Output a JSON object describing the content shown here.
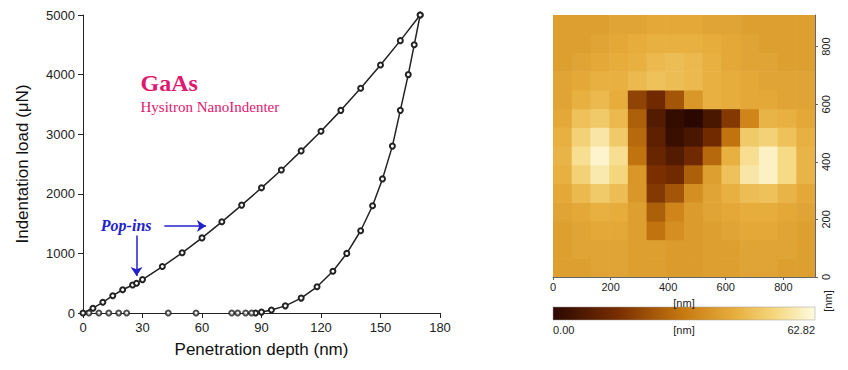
{
  "chart_data": [
    {
      "type": "line",
      "xlabel": "Penetration depth (nm)",
      "ylabel": "Indentation load (μN)",
      "xlim": [
        0,
        180
      ],
      "xticks": [
        0,
        30,
        60,
        90,
        120,
        150,
        180
      ],
      "ylim": [
        0,
        5000
      ],
      "yticks": [
        0,
        1000,
        2000,
        3000,
        4000,
        5000
      ],
      "grid": false,
      "annotations": [
        {
          "text": "GaAs",
          "x": 29,
          "y": 3860,
          "color": "#e0176e"
        },
        {
          "text": "Hysitron NanoIndenter",
          "x": 29,
          "y": 3460,
          "color": "#e0176e"
        },
        {
          "text": "Pop-ins",
          "x": 9,
          "y": 1460,
          "color": "#2222cc",
          "arrows": [
            [
              [
                27,
                1300
              ],
              [
                27,
                620
              ]
            ],
            [
              [
                41,
                1460
              ],
              [
                62,
                1460
              ]
            ]
          ]
        }
      ],
      "series": [
        {
          "color": "#222222",
          "marker": "circle",
          "line_style": "solid",
          "x": [
            0,
            5,
            10,
            15,
            20,
            25,
            27,
            30,
            40,
            50,
            60,
            70,
            80,
            90,
            100,
            110,
            120,
            130,
            140,
            150,
            160,
            170
          ],
          "values": [
            0,
            80,
            180,
            290,
            390,
            470,
            500,
            560,
            780,
            1010,
            1260,
            1530,
            1810,
            2100,
            2400,
            2720,
            3050,
            3400,
            3770,
            4160,
            4570,
            5000
          ]
        },
        {
          "color": "#222222",
          "marker": "circle",
          "line_style": "solid",
          "x": [
            170,
            167,
            164,
            160,
            156,
            151,
            146,
            140,
            133,
            126,
            118,
            110,
            102,
            95,
            90,
            87
          ],
          "values": [
            5000,
            4500,
            4000,
            3400,
            2800,
            2250,
            1800,
            1380,
            1000,
            700,
            440,
            250,
            120,
            50,
            15,
            0
          ]
        },
        {
          "type": "scatter",
          "color": "#222222",
          "marker": "circle",
          "x": [
            3,
            8,
            13,
            18,
            22,
            43,
            57,
            75,
            78,
            82,
            85
          ],
          "values": [
            0,
            0,
            0,
            0,
            0,
            0,
            0,
            0,
            0,
            0,
            0
          ]
        }
      ]
    },
    {
      "type": "heatmap",
      "xlabel": "[nm]",
      "ylabel": "[nm]",
      "xlim": [
        0,
        910
      ],
      "xticks": [
        0,
        200,
        400,
        600,
        800
      ],
      "ylim": [
        0,
        910
      ],
      "yticks": [
        0,
        200,
        400,
        600,
        800
      ],
      "x": [
        32.5,
        97.5,
        162.5,
        227.5,
        292.5,
        357.5,
        422.5,
        487.5,
        552.5,
        617.5,
        682.5,
        747.5,
        812.5,
        877.5
      ],
      "y": [
        32.5,
        97.5,
        162.5,
        227.5,
        292.5,
        357.5,
        422.5,
        487.5,
        552.5,
        617.5,
        682.5,
        747.5,
        812.5,
        877.5
      ],
      "z": [
        [
          40,
          40,
          41,
          41,
          40,
          40,
          39,
          39,
          40,
          40,
          41,
          41,
          40,
          40
        ],
        [
          40,
          41,
          41,
          41,
          40,
          40,
          39,
          39,
          40,
          40,
          41,
          41,
          41,
          40
        ],
        [
          40,
          41,
          42,
          42,
          40,
          30,
          36,
          39,
          40,
          41,
          42,
          42,
          41,
          40
        ],
        [
          41,
          42,
          44,
          43,
          40,
          26,
          34,
          39,
          41,
          42,
          43,
          43,
          42,
          41
        ],
        [
          42,
          46,
          50,
          47,
          38,
          18,
          24,
          36,
          41,
          44,
          47,
          48,
          45,
          42
        ],
        [
          44,
          52,
          58,
          53,
          38,
          16,
          14,
          26,
          40,
          48,
          57,
          60,
          54,
          45
        ],
        [
          45,
          55,
          61,
          55,
          30,
          12,
          8,
          14,
          28,
          44,
          55,
          60,
          54,
          45
        ],
        [
          44,
          52,
          57,
          50,
          28,
          10,
          3,
          6,
          14,
          30,
          50,
          52,
          48,
          44
        ],
        [
          42,
          48,
          50,
          46,
          26,
          8,
          2,
          0,
          6,
          18,
          34,
          45,
          44,
          42
        ],
        [
          41,
          44,
          46,
          43,
          20,
          14,
          24,
          38,
          44,
          43,
          42,
          42,
          41,
          41
        ],
        [
          41,
          42,
          44,
          44,
          46,
          48,
          47,
          46,
          44,
          43,
          42,
          41,
          41,
          41
        ],
        [
          40,
          41,
          42,
          43,
          44,
          46,
          47,
          46,
          44,
          42,
          41,
          41,
          40,
          40
        ],
        [
          40,
          40,
          41,
          42,
          43,
          44,
          44,
          44,
          43,
          42,
          41,
          40,
          40,
          40
        ],
        [
          40,
          40,
          40,
          41,
          41,
          42,
          42,
          42,
          41,
          41,
          40,
          40,
          40,
          40
        ]
      ],
      "colorbar": {
        "range": [
          0,
          62.82
        ],
        "ticks": [
          {
            "value": 0,
            "label": "0.00"
          },
          {
            "value": 62.82,
            "label": "62.82"
          }
        ],
        "label": "[nm]"
      }
    }
  ]
}
